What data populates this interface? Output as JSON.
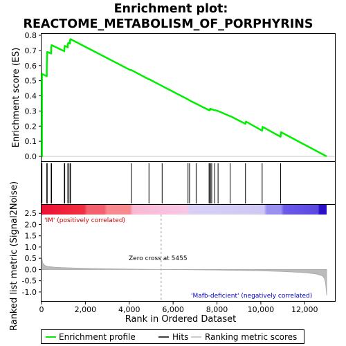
{
  "chart_data": {
    "title_line1": "Enrichment plot:",
    "title_line2": "REACTOME_METABOLISM_OF_PORPHYRINS",
    "type": "line",
    "x_max": 13000,
    "top_panel": {
      "ylabel": "Enrichment score (ES)",
      "ylim": [
        0,
        0.8
      ],
      "yticks": [
        "0.0",
        "0.1",
        "0.2",
        "0.3",
        "0.4",
        "0.5",
        "0.6",
        "0.7",
        "0.8"
      ],
      "series": [
        {
          "name": "Enrichment profile",
          "color": "#00ee00",
          "x": [
            0,
            20,
            20,
            240,
            240,
            260,
            260,
            440,
            440,
            460,
            460,
            1040,
            1040,
            1060,
            1060,
            1200,
            1200,
            1220,
            1220,
            1300,
            1300,
            1320,
            1320,
            4050,
            4100,
            4880,
            4900,
            5500,
            6700,
            6750,
            7640,
            7660,
            7680,
            7700,
            7760,
            7780,
            7900,
            7920,
            8050,
            8600,
            8620,
            9300,
            9320,
            10060,
            10080,
            10900,
            10920,
            13000
          ],
          "y": [
            0.0,
            0.0,
            0.545,
            0.53,
            0.6,
            0.69,
            0.69,
            0.68,
            0.72,
            0.735,
            0.735,
            0.695,
            0.71,
            0.73,
            0.73,
            0.72,
            0.74,
            0.75,
            0.75,
            0.745,
            0.765,
            0.775,
            0.775,
            0.57,
            0.57,
            0.51,
            0.51,
            0.465,
            0.375,
            0.37,
            0.305,
            0.31,
            0.305,
            0.315,
            0.31,
            0.31,
            0.305,
            0.305,
            0.3,
            0.265,
            0.265,
            0.215,
            0.23,
            0.17,
            0.195,
            0.13,
            0.16,
            0.0
          ]
        }
      ]
    },
    "hits": {
      "name": "Hits",
      "positions": [
        20,
        240,
        260,
        440,
        460,
        1040,
        1060,
        1200,
        1220,
        1300,
        1320,
        4100,
        4900,
        5500,
        6680,
        6750,
        7050,
        7640,
        7680,
        7700,
        7760,
        7900,
        8050,
        8600,
        9300,
        10060,
        10900
      ]
    },
    "bottom_panel": {
      "ylabel": "Ranked list metric (Signal2Noise)",
      "xlabel": "Rank in Ordered Dataset",
      "ylim": [
        -1.25,
        2.6
      ],
      "yticks": [
        "-1.0",
        "-0.5",
        "0.0",
        "0.5",
        "1.0",
        "1.5",
        "2.0",
        "2.5"
      ],
      "xticks": [
        "0",
        "2,000",
        "4,000",
        "6,000",
        "8,000",
        "10,000",
        "12,000"
      ],
      "xtick_values": [
        0,
        2000,
        4000,
        6000,
        8000,
        10000,
        12000
      ],
      "zero_cross": 5455,
      "zero_cross_label": "Zero cross at 5455",
      "pos_label": "'IM' (positively correlated)",
      "neg_label": "'Mafb-deficient' (negatively correlated)",
      "metric_x": [
        0,
        50,
        150,
        300,
        600,
        1000,
        2000,
        3000,
        4000,
        5000,
        5455,
        6000,
        7000,
        8000,
        9000,
        10000,
        11000,
        12000,
        12500,
        12800,
        12900,
        12950,
        13000
      ],
      "metric_y": [
        0.6,
        0.3,
        0.18,
        0.13,
        0.1,
        0.08,
        0.05,
        0.03,
        0.015,
        0.005,
        0.0,
        -0.005,
        -0.015,
        -0.025,
        -0.04,
        -0.06,
        -0.09,
        -0.14,
        -0.2,
        -0.28,
        -0.4,
        -0.6,
        -1.15
      ]
    },
    "legend": [
      {
        "label": "Enrichment profile",
        "color": "#00ee00"
      },
      {
        "label": "Hits",
        "color": "#000000"
      },
      {
        "label": "Ranking metric scores",
        "color": "#bbbbbb"
      }
    ]
  }
}
